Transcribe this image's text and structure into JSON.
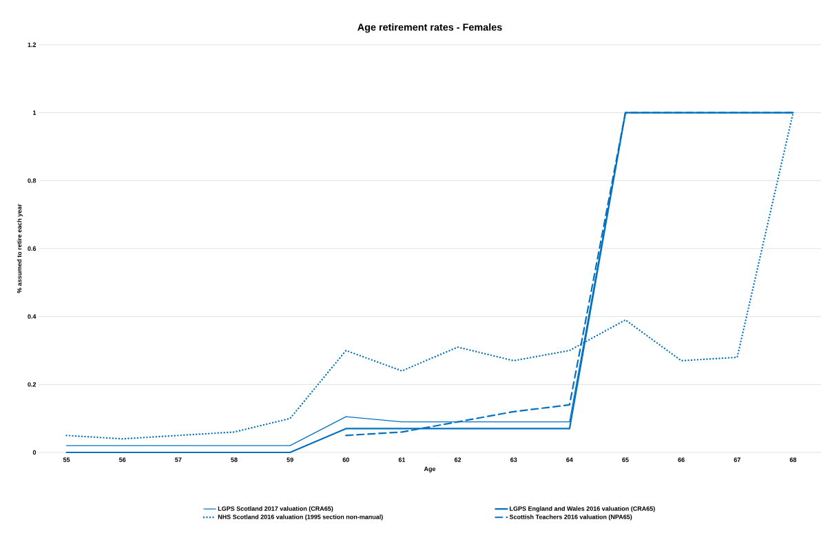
{
  "chart_data": {
    "type": "line",
    "title": "Age retirement rates - Females",
    "xlabel": "Age",
    "ylabel": "% assumed to retire each year",
    "categories": [
      "55",
      "56",
      "57",
      "58",
      "59",
      "60",
      "61",
      "62",
      "63",
      "64",
      "65",
      "66",
      "67",
      "68"
    ],
    "series": [
      {
        "name": "LGPS Scotland 2017 valuation (CRA65)",
        "color": "#0070c0",
        "line_style": "solid",
        "values": [
          0.02,
          0.02,
          0.02,
          0.02,
          0.02,
          0.105,
          0.09,
          0.09,
          0.09,
          0.09,
          1,
          1,
          1,
          1
        ]
      },
      {
        "name": "LGPS England and Wales 2016 valuation (CRA65)",
        "color": "#0070c0",
        "line_style": "solid",
        "values": [
          0,
          0,
          0,
          0,
          0,
          0.07,
          0.07,
          0.07,
          0.07,
          0.07,
          1,
          1,
          1,
          1
        ]
      },
      {
        "name": "NHS Scotland 2016 valuation (1995 section non-manual)",
        "color": "#0070c0",
        "line_style": "dotted",
        "values": [
          0.05,
          0.04,
          0.05,
          0.06,
          0.1,
          0.3,
          0.24,
          0.31,
          0.27,
          0.3,
          0.39,
          0.27,
          0.28,
          1.0
        ]
      },
      {
        "name": "Scottish Teachers 2016 valuation (NPA65)",
        "color": "#0070c0",
        "line_style": "dashed",
        "values": [
          null,
          null,
          null,
          null,
          null,
          0.05,
          0.06,
          0.09,
          0.12,
          0.14,
          1,
          1,
          1,
          1
        ]
      }
    ],
    "ylim": [
      0,
      1.2
    ],
    "yticks": [
      0,
      0.2,
      0.4,
      0.6,
      0.8,
      1,
      1.2
    ],
    "grid": "y",
    "legend": "bottom",
    "marker": "none"
  }
}
